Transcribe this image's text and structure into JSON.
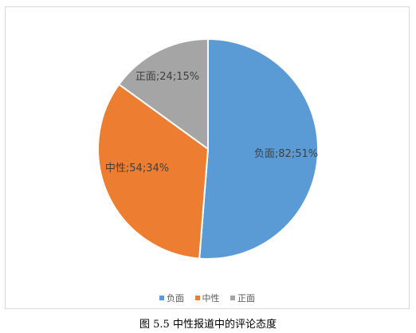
{
  "chart_data": {
    "type": "pie",
    "categories": [
      "负面",
      "中性",
      "正面"
    ],
    "values": [
      82,
      54,
      24
    ],
    "percents": [
      51,
      34,
      15
    ],
    "data_labels": [
      "负面;82;51%",
      "中性;54;34%",
      "正面;24;15%"
    ],
    "colors": [
      "#5b9bd5",
      "#ed7d31",
      "#a5a5a5"
    ],
    "legend": {
      "placement": "bottom",
      "entries": [
        "负面",
        "中性",
        "正面"
      ]
    }
  },
  "caption": "图 5.5  中性报道中的评论态度"
}
